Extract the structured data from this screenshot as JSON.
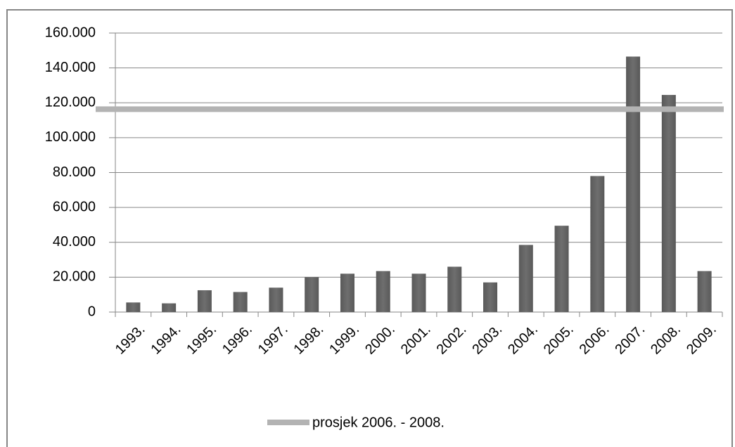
{
  "chart_data": {
    "type": "bar",
    "categories": [
      "1993.",
      "1994.",
      "1995.",
      "1996.",
      "1997.",
      "1998.",
      "1999.",
      "2000.",
      "2001.",
      "2002.",
      "2003.",
      "2004.",
      "2005.",
      "2006.",
      "2007.",
      "2008.",
      "2009."
    ],
    "values": [
      5500,
      5000,
      12500,
      11500,
      14000,
      20000,
      22000,
      23500,
      22000,
      26000,
      17000,
      38500,
      49500,
      78000,
      146500,
      124500,
      23500
    ],
    "color": "#595959",
    "ylim": [
      0,
      160000
    ],
    "yticks": [
      0,
      {
        "value": 20000,
        "label": "20.000"
      },
      {
        "value": 40000,
        "label": "40.000"
      },
      {
        "value": 60000,
        "label": "60.000"
      },
      {
        "value": 80000,
        "label": "80.000"
      },
      {
        "value": 100000,
        "label": "100.000"
      },
      {
        "value": 120000,
        "label": "120.000"
      },
      {
        "value": 140000,
        "label": "140.000"
      },
      {
        "value": 160000,
        "label": "160.000"
      }
    ],
    "grid": true,
    "reference_line": {
      "name": "prosjek 2006. - 2008.",
      "value": 116300,
      "color": "#b3b3b3"
    },
    "legend": "bottom"
  }
}
